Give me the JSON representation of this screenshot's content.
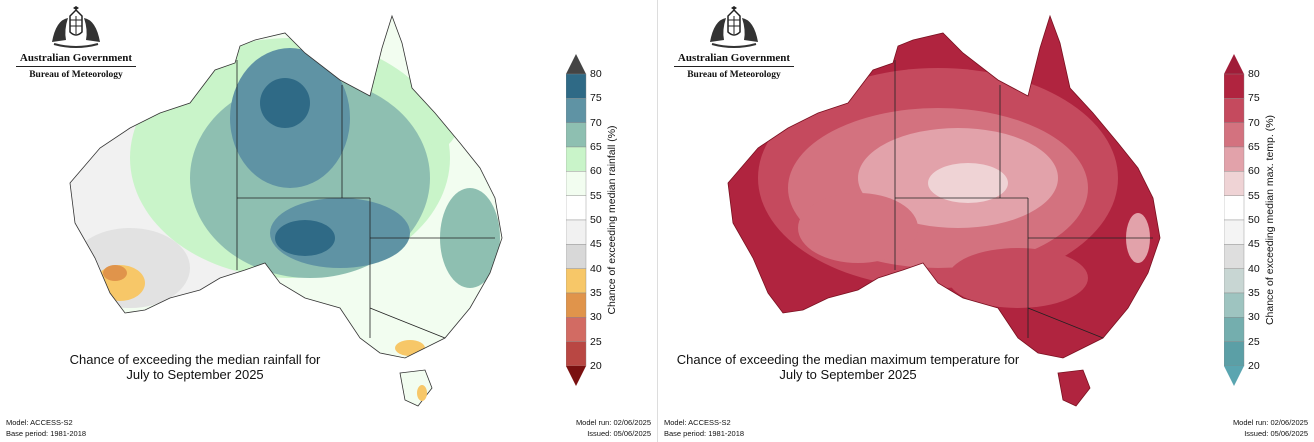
{
  "logo": {
    "government": "Australian Government",
    "bureau": "Bureau of Meteorology"
  },
  "rainfall": {
    "title_line1": "Chance of exceeding the median rainfall for",
    "title_line2": "July to September 2025",
    "colorbar_label": "Chance of exceeding median rainfall (%)",
    "ticks": [
      "80",
      "75",
      "70",
      "65",
      "60",
      "55",
      "50",
      "45",
      "40",
      "35",
      "30",
      "25",
      "20"
    ],
    "colors": [
      "#2f6a86",
      "#5f93a4",
      "#8ebfb1",
      "#c9f4c9",
      "#f2fdf0",
      "#ffffff",
      "#f1f1f1",
      "#d8d8d8",
      "#f7c768",
      "#e0944b",
      "#d26b63",
      "#b94743",
      "#8f1d1d"
    ],
    "cap_top": "#444444",
    "cap_bottom": "#7a1010",
    "model": "Model: ACCESS-S2",
    "base_period": "Base period: 1981-2018",
    "model_run": "Model run: 02/06/2025",
    "issued": "Issued: 05/06/2025"
  },
  "temperature": {
    "title_line1": "Chance of exceeding the median maximum temperature for",
    "title_line2": "July to September 2025",
    "colorbar_label": "Chance of exceeding median max. temp. (%)",
    "ticks": [
      "80",
      "75",
      "70",
      "65",
      "60",
      "55",
      "50",
      "45",
      "40",
      "35",
      "30",
      "25",
      "20"
    ],
    "colors": [
      "#b0243f",
      "#c54a5e",
      "#d3727f",
      "#e2a2aa",
      "#efd3d5",
      "#ffffff",
      "#f4f4f4",
      "#dedede",
      "#c8d6d3",
      "#9ec4c0",
      "#74aeae",
      "#5b9fa6",
      "#4d96a0"
    ],
    "cap_top": "#a01c38",
    "cap_bottom": "#5aa5b0",
    "model": "Model: ACCESS-S2",
    "base_period": "Base period: 1981-2018",
    "model_run": "Model run: 02/06/2025",
    "issued": "Issued: 05/06/2025"
  }
}
